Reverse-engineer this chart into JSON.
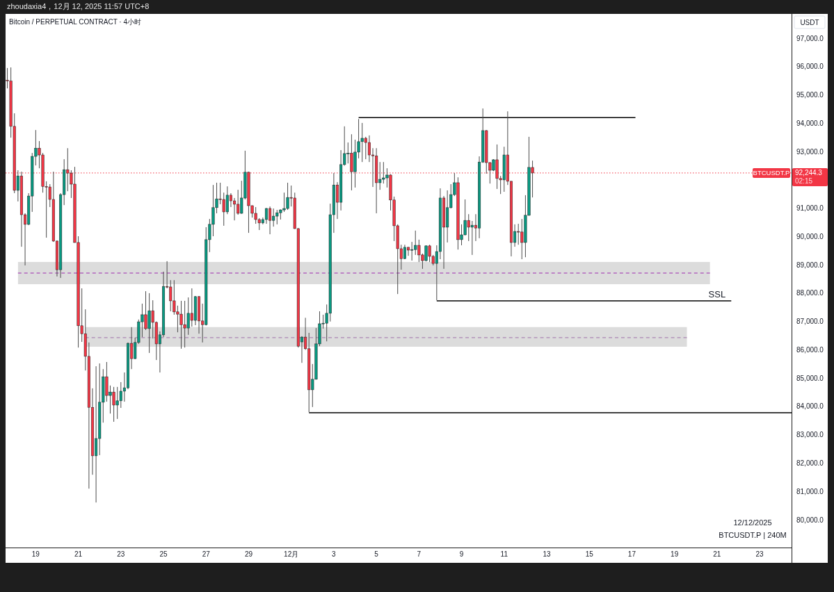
{
  "chart_data": {
    "type": "candlestick",
    "title": "Bitcoin / PERPETUAL CONTRACT · 4小时",
    "subtitle": "zhoudaxia4，12月 12, 2025 11:57 UTC+8",
    "ylabel": "USDT",
    "x": [
      "2025-11-17T16:00",
      "2025-11-17T20:00",
      "2025-11-18T00:00",
      "2025-11-18T04:00",
      "2025-11-18T08:00",
      "2025-11-18T12:00",
      "2025-11-18T16:00",
      "2025-11-18T20:00",
      "2025-11-19T00:00",
      "2025-11-19T04:00",
      "2025-11-19T08:00",
      "2025-11-19T12:00",
      "2025-11-19T16:00",
      "2025-11-19T20:00",
      "2025-11-20T00:00",
      "2025-11-20T04:00",
      "2025-11-20T08:00",
      "2025-11-20T12:00",
      "2025-11-20T16:00",
      "2025-11-20T20:00",
      "2025-11-21T00:00",
      "2025-11-21T04:00",
      "2025-11-21T08:00",
      "2025-11-21T12:00",
      "2025-11-21T16:00",
      "2025-11-21T20:00",
      "2025-11-22T00:00",
      "2025-11-22T04:00",
      "2025-11-22T08:00",
      "2025-11-22T12:00",
      "2025-11-22T16:00",
      "2025-11-22T20:00",
      "2025-11-23T00:00",
      "2025-11-23T04:00",
      "2025-11-23T08:00",
      "2025-11-23T12:00",
      "2025-11-23T16:00",
      "2025-11-23T20:00",
      "2025-11-24T00:00",
      "2025-11-24T04:00",
      "2025-11-24T08:00",
      "2025-11-24T12:00",
      "2025-11-24T16:00",
      "2025-11-24T20:00",
      "2025-11-25T00:00",
      "2025-11-25T04:00",
      "2025-11-25T08:00",
      "2025-11-25T12:00",
      "2025-11-25T16:00",
      "2025-11-25T20:00",
      "2025-11-26T00:00",
      "2025-11-26T04:00",
      "2025-11-26T08:00",
      "2025-11-26T12:00",
      "2025-11-26T16:00",
      "2025-11-26T20:00",
      "2025-11-27T00:00",
      "2025-11-27T04:00",
      "2025-11-27T08:00",
      "2025-11-27T12:00",
      "2025-11-27T16:00",
      "2025-11-27T20:00",
      "2025-11-28T00:00",
      "2025-11-28T04:00",
      "2025-11-28T08:00",
      "2025-11-28T12:00",
      "2025-11-28T16:00",
      "2025-11-28T20:00",
      "2025-11-29T00:00",
      "2025-11-29T04:00",
      "2025-11-29T08:00",
      "2025-11-29T12:00",
      "2025-11-29T16:00",
      "2025-11-29T20:00",
      "2025-11-30T00:00",
      "2025-11-30T04:00",
      "2025-11-30T08:00",
      "2025-11-30T12:00",
      "2025-11-30T16:00",
      "2025-11-30T20:00",
      "2025-12-01T00:00",
      "2025-12-01T04:00",
      "2025-12-01T08:00",
      "2025-12-01T12:00",
      "2025-12-01T16:00",
      "2025-12-01T20:00",
      "2025-12-02T00:00",
      "2025-12-02T04:00",
      "2025-12-02T08:00",
      "2025-12-02T12:00",
      "2025-12-02T16:00",
      "2025-12-02T20:00",
      "2025-12-03T00:00",
      "2025-12-03T04:00",
      "2025-12-03T08:00",
      "2025-12-03T12:00",
      "2025-12-03T16:00",
      "2025-12-03T20:00",
      "2025-12-04T00:00",
      "2025-12-04T04:00",
      "2025-12-04T08:00",
      "2025-12-04T12:00",
      "2025-12-04T16:00",
      "2025-12-04T20:00",
      "2025-12-05T00:00",
      "2025-12-05T04:00",
      "2025-12-05T08:00",
      "2025-12-05T12:00",
      "2025-12-05T16:00",
      "2025-12-05T20:00",
      "2025-12-06T00:00",
      "2025-12-06T04:00",
      "2025-12-06T08:00",
      "2025-12-06T12:00",
      "2025-12-06T16:00",
      "2025-12-06T20:00",
      "2025-12-07T00:00",
      "2025-12-07T04:00",
      "2025-12-07T08:00",
      "2025-12-07T12:00",
      "2025-12-07T16:00",
      "2025-12-07T20:00",
      "2025-12-08T00:00",
      "2025-12-08T04:00",
      "2025-12-08T08:00",
      "2025-12-08T12:00",
      "2025-12-08T16:00",
      "2025-12-08T20:00",
      "2025-12-09T00:00",
      "2025-12-09T04:00",
      "2025-12-09T08:00",
      "2025-12-09T12:00",
      "2025-12-09T16:00",
      "2025-12-09T20:00",
      "2025-12-10T00:00",
      "2025-12-10T04:00",
      "2025-12-10T08:00",
      "2025-12-10T12:00",
      "2025-12-10T16:00",
      "2025-12-10T20:00",
      "2025-12-11T00:00",
      "2025-12-11T04:00",
      "2025-12-11T08:00",
      "2025-12-11T12:00",
      "2025-12-11T16:00",
      "2025-12-11T20:00",
      "2025-12-12T00:00",
      "2025-12-12T04:00",
      "2025-12-12T08:00"
    ],
    "ohlc": [
      [
        95520,
        95950,
        95230,
        95490
      ],
      [
        95490,
        95970,
        93490,
        93890
      ],
      [
        93890,
        94350,
        91530,
        91630
      ],
      [
        91630,
        92340,
        91240,
        92140
      ],
      [
        92140,
        92290,
        89640,
        90770
      ],
      [
        90770,
        90820,
        88980,
        90430
      ],
      [
        90430,
        91530,
        90400,
        91430
      ],
      [
        91430,
        92950,
        90870,
        92830
      ],
      [
        92830,
        93760,
        92510,
        93120
      ],
      [
        93120,
        93370,
        92410,
        92880
      ],
      [
        92880,
        92950,
        91550,
        91770
      ],
      [
        91770,
        91950,
        89960,
        91750
      ],
      [
        91750,
        91850,
        91040,
        91310
      ],
      [
        91310,
        92290,
        89810,
        89840
      ],
      [
        89840,
        89860,
        88590,
        88830
      ],
      [
        88830,
        91530,
        88540,
        91480
      ],
      [
        91480,
        92730,
        91110,
        92360
      ],
      [
        92360,
        93120,
        91600,
        92240
      ],
      [
        92240,
        92340,
        91360,
        91850
      ],
      [
        91850,
        92460,
        89780,
        89790
      ],
      [
        89790,
        90010,
        86080,
        86850
      ],
      [
        86850,
        88170,
        86280,
        86570
      ],
      [
        86570,
        87430,
        85270,
        85770
      ],
      [
        85770,
        86260,
        81100,
        83970
      ],
      [
        83970,
        84640,
        81590,
        82260
      ],
      [
        82260,
        85420,
        80610,
        82870
      ],
      [
        82870,
        85520,
        82280,
        84150
      ],
      [
        84150,
        85320,
        83430,
        85050
      ],
      [
        85050,
        85570,
        84170,
        84390
      ],
      [
        84390,
        84740,
        83750,
        84510
      ],
      [
        84510,
        84690,
        83460,
        84050
      ],
      [
        84050,
        84690,
        83560,
        84200
      ],
      [
        84200,
        84860,
        83950,
        84540
      ],
      [
        84540,
        85200,
        84170,
        84660
      ],
      [
        84660,
        86260,
        84610,
        86230
      ],
      [
        86230,
        86800,
        85320,
        85690
      ],
      [
        85690,
        86430,
        85670,
        86260
      ],
      [
        86260,
        87070,
        86210,
        86990
      ],
      [
        86990,
        87630,
        86450,
        87240
      ],
      [
        87240,
        88070,
        86700,
        86750
      ],
      [
        86750,
        88000,
        85890,
        87380
      ],
      [
        87380,
        87750,
        86400,
        86970
      ],
      [
        86970,
        87000,
        85640,
        86210
      ],
      [
        86210,
        86650,
        85200,
        86530
      ],
      [
        86530,
        88760,
        86450,
        88240
      ],
      [
        88240,
        89130,
        88170,
        88220
      ],
      [
        88220,
        88460,
        87360,
        87730
      ],
      [
        87730,
        88460,
        87240,
        87340
      ],
      [
        87340,
        87560,
        86620,
        87260
      ],
      [
        87260,
        87730,
        86040,
        86890
      ],
      [
        86890,
        87730,
        86080,
        86770
      ],
      [
        86770,
        87850,
        86530,
        87290
      ],
      [
        87290,
        88170,
        86820,
        87040
      ],
      [
        87040,
        87900,
        86870,
        87880
      ],
      [
        87880,
        87900,
        86570,
        87020
      ],
      [
        87020,
        87630,
        86260,
        86890
      ],
      [
        86890,
        90330,
        86860,
        89890
      ],
      [
        89890,
        90620,
        89450,
        90430
      ],
      [
        90430,
        91820,
        90010,
        91020
      ],
      [
        91020,
        91900,
        90820,
        91330
      ],
      [
        91330,
        91900,
        91140,
        91310
      ],
      [
        91310,
        91550,
        90380,
        90870
      ],
      [
        90870,
        91770,
        90790,
        91460
      ],
      [
        91460,
        91530,
        91040,
        91260
      ],
      [
        91260,
        91360,
        90570,
        91140
      ],
      [
        91140,
        91650,
        90770,
        90820
      ],
      [
        90820,
        91970,
        90800,
        91360
      ],
      [
        91360,
        93030,
        91310,
        92270
      ],
      [
        92270,
        92290,
        90130,
        91090
      ],
      [
        91090,
        91100,
        90670,
        90820
      ],
      [
        90820,
        91040,
        90450,
        90600
      ],
      [
        90600,
        90650,
        90230,
        90480
      ],
      [
        90480,
        90670,
        90430,
        90600
      ],
      [
        90600,
        91010,
        90450,
        90990
      ],
      [
        90990,
        91060,
        90080,
        90570
      ],
      [
        90570,
        90990,
        90350,
        90720
      ],
      [
        90720,
        90940,
        90430,
        90840
      ],
      [
        90840,
        90960,
        90600,
        90940
      ],
      [
        90940,
        91550,
        90870,
        90990
      ],
      [
        90990,
        91900,
        90940,
        91380
      ],
      [
        91380,
        91800,
        91060,
        91360
      ],
      [
        91360,
        91550,
        90270,
        90280
      ],
      [
        90280,
        90300,
        86080,
        86130
      ],
      [
        86280,
        86480,
        85540,
        86450
      ],
      [
        86450,
        87130,
        86000,
        86040
      ],
      [
        86040,
        86600,
        83800,
        84590
      ],
      [
        84590,
        85500,
        83980,
        84960
      ],
      [
        84960,
        86770,
        84950,
        86210
      ],
      [
        86210,
        87360,
        86130,
        86920
      ],
      [
        86920,
        87240,
        86750,
        86940
      ],
      [
        86940,
        87600,
        86300,
        87290
      ],
      [
        87290,
        91160,
        87000,
        90770
      ],
      [
        90770,
        92240,
        90130,
        91820
      ],
      [
        91820,
        91920,
        90620,
        91210
      ],
      [
        91210,
        93050,
        90920,
        92540
      ],
      [
        92540,
        93890,
        92500,
        92930
      ],
      [
        92930,
        93320,
        92580,
        92940
      ],
      [
        92940,
        93610,
        91630,
        92290
      ],
      [
        92290,
        93420,
        91730,
        92980
      ],
      [
        92980,
        94150,
        92760,
        93350
      ],
      [
        93350,
        94010,
        92630,
        93470
      ],
      [
        93470,
        93520,
        92730,
        93320
      ],
      [
        93320,
        93570,
        92630,
        92880
      ],
      [
        92880,
        93120,
        91750,
        92850
      ],
      [
        92850,
        93120,
        90820,
        91900
      ],
      [
        91900,
        92630,
        91650,
        92020
      ],
      [
        92020,
        92630,
        91870,
        92070
      ],
      [
        92070,
        92410,
        91730,
        92170
      ],
      [
        92170,
        92200,
        90920,
        91290
      ],
      [
        91290,
        91410,
        89840,
        90380
      ],
      [
        90380,
        90430,
        87970,
        89570
      ],
      [
        89570,
        89710,
        88830,
        89220
      ],
      [
        89220,
        89710,
        89200,
        89620
      ],
      [
        89620,
        89630,
        89320,
        89520
      ],
      [
        89520,
        89810,
        89150,
        89540
      ],
      [
        89540,
        90210,
        89350,
        89690
      ],
      [
        89690,
        89890,
        89100,
        89350
      ],
      [
        89350,
        89400,
        88860,
        89150
      ],
      [
        89150,
        89690,
        89120,
        89670
      ],
      [
        89670,
        89710,
        89100,
        89300
      ],
      [
        89300,
        89350,
        88980,
        89050
      ],
      [
        89050,
        89690,
        87750,
        89470
      ],
      [
        89470,
        91700,
        89200,
        91360
      ],
      [
        91360,
        91430,
        88860,
        90330
      ],
      [
        90330,
        91630,
        89790,
        91020
      ],
      [
        91020,
        91850,
        90990,
        91480
      ],
      [
        91480,
        92240,
        91430,
        91900
      ],
      [
        91900,
        92090,
        89540,
        89890
      ],
      [
        89890,
        90430,
        89690,
        90060
      ],
      [
        90060,
        91310,
        90040,
        90570
      ],
      [
        90570,
        90790,
        89840,
        90330
      ],
      [
        90330,
        90550,
        89350,
        90400
      ],
      [
        90400,
        90790,
        89840,
        90300
      ],
      [
        90300,
        92830,
        89940,
        92630
      ],
      [
        92630,
        94520,
        92600,
        93740
      ],
      [
        93740,
        93760,
        92220,
        92610
      ],
      [
        92610,
        92630,
        91870,
        92340
      ],
      [
        92340,
        92730,
        92310,
        92710
      ],
      [
        92710,
        93250,
        91680,
        92050
      ],
      [
        92050,
        92140,
        91500,
        92000
      ],
      [
        92000,
        93170,
        91580,
        92880
      ],
      [
        92880,
        94420,
        91820,
        91950
      ],
      [
        91950,
        91960,
        89300,
        89790
      ],
      [
        89790,
        90430,
        89640,
        90180
      ],
      [
        90180,
        90450,
        89710,
        90160
      ],
      [
        90160,
        90620,
        89200,
        89790
      ],
      [
        89790,
        91460,
        89270,
        90750
      ],
      [
        90750,
        93520,
        90730,
        92440
      ],
      [
        92440,
        92680,
        91380,
        92244.3
      ]
    ],
    "series": [
      {
        "type": "line",
        "x": [
          "2025-11-18T04:00",
          "2025-12-20T16:00"
        ],
        "values": [
          88710,
          88710
        ],
        "lower": [
          88320,
          88320
        ],
        "upper": [
          89100,
          89100
        ],
        "color": "#9c27b0",
        "line_style": "dashed"
      },
      {
        "type": "line",
        "x": [
          "2025-11-21T08:00",
          "2025-12-19T14:00"
        ],
        "values": [
          86430,
          86430
        ],
        "lower": [
          86110,
          86110
        ],
        "upper": [
          86800,
          86800
        ],
        "color": "#9e6fa8",
        "line_style": "dashed"
      },
      {
        "type": "line",
        "x": [
          "2025-12-04T04:00",
          "2025-12-17T04:00"
        ],
        "values": [
          94200,
          94200
        ],
        "color": "#000000",
        "line_style": "solid"
      },
      {
        "type": "line",
        "x": [
          "2025-12-07T20:00",
          "2025-12-21T16:00"
        ],
        "values": [
          87730,
          87730
        ],
        "color": "#000000",
        "line_style": "solid"
      },
      {
        "type": "line",
        "x": [
          "2025-12-01T20:00",
          "2025-12-24T12:00"
        ],
        "values": [
          83780,
          83780
        ],
        "color": "#000000",
        "line_style": "solid"
      }
    ],
    "xlim": [
      "2025-11-17T14:00",
      "2025-12-24T12:00"
    ],
    "xticks": [
      {
        "value": "2025-11-19",
        "label": "19"
      },
      {
        "value": "2025-11-21",
        "label": "21"
      },
      {
        "value": "2025-11-23",
        "label": "23"
      },
      {
        "value": "2025-11-25",
        "label": "25"
      },
      {
        "value": "2025-11-27",
        "label": "27"
      },
      {
        "value": "2025-11-29",
        "label": "29"
      },
      {
        "value": "2025-12-01",
        "label": "12月"
      },
      {
        "value": "2025-12-03",
        "label": "3"
      },
      {
        "value": "2025-12-05",
        "label": "5"
      },
      {
        "value": "2025-12-07",
        "label": "7"
      },
      {
        "value": "2025-12-09",
        "label": "9"
      },
      {
        "value": "2025-12-11",
        "label": "11"
      },
      {
        "value": "2025-12-13",
        "label": "13"
      },
      {
        "value": "2025-12-15",
        "label": "15"
      },
      {
        "value": "2025-12-17",
        "label": "17"
      },
      {
        "value": "2025-12-19",
        "label": "19"
      },
      {
        "value": "2025-12-21",
        "label": "21"
      },
      {
        "value": "2025-12-23",
        "label": "23"
      }
    ],
    "ylim": [
      79020,
      97860
    ],
    "yticks": [
      {
        "value": 80000,
        "label": "80,000.0"
      },
      {
        "value": 81000,
        "label": "81,000.0"
      },
      {
        "value": 82000,
        "label": "82,000.0"
      },
      {
        "value": 83000,
        "label": "83,000.0"
      },
      {
        "value": 84000,
        "label": "84,000.0"
      },
      {
        "value": 85000,
        "label": "85,000.0"
      },
      {
        "value": 86000,
        "label": "86,000.0"
      },
      {
        "value": 87000,
        "label": "87,000.0"
      },
      {
        "value": 88000,
        "label": "88,000.0"
      },
      {
        "value": 89000,
        "label": "89,000.0"
      },
      {
        "value": 90000,
        "label": "90,000.0"
      },
      {
        "value": 91000,
        "label": "91,000.0"
      },
      {
        "value": 93000,
        "label": "93,000.0"
      },
      {
        "value": 94000,
        "label": "94,000.0"
      },
      {
        "value": 95000,
        "label": "95,000.0"
      },
      {
        "value": 96000,
        "label": "96,000.0"
      },
      {
        "value": 97000,
        "label": "97,000.0"
      }
    ],
    "ref_lines": [
      {
        "axis": "y",
        "value": 92244.3,
        "label": "92,244.3",
        "color": "#f23645",
        "line_style": "dotted"
      }
    ],
    "annotations": [
      {
        "text": "SSL",
        "x": "2025-12-21T00:00",
        "y": 87730
      },
      {
        "text": "BTCUSDT.P",
        "y": 92244.3
      },
      "02:15",
      "12/12/2025",
      "BTCUSDT.P | 240M"
    ]
  }
}
